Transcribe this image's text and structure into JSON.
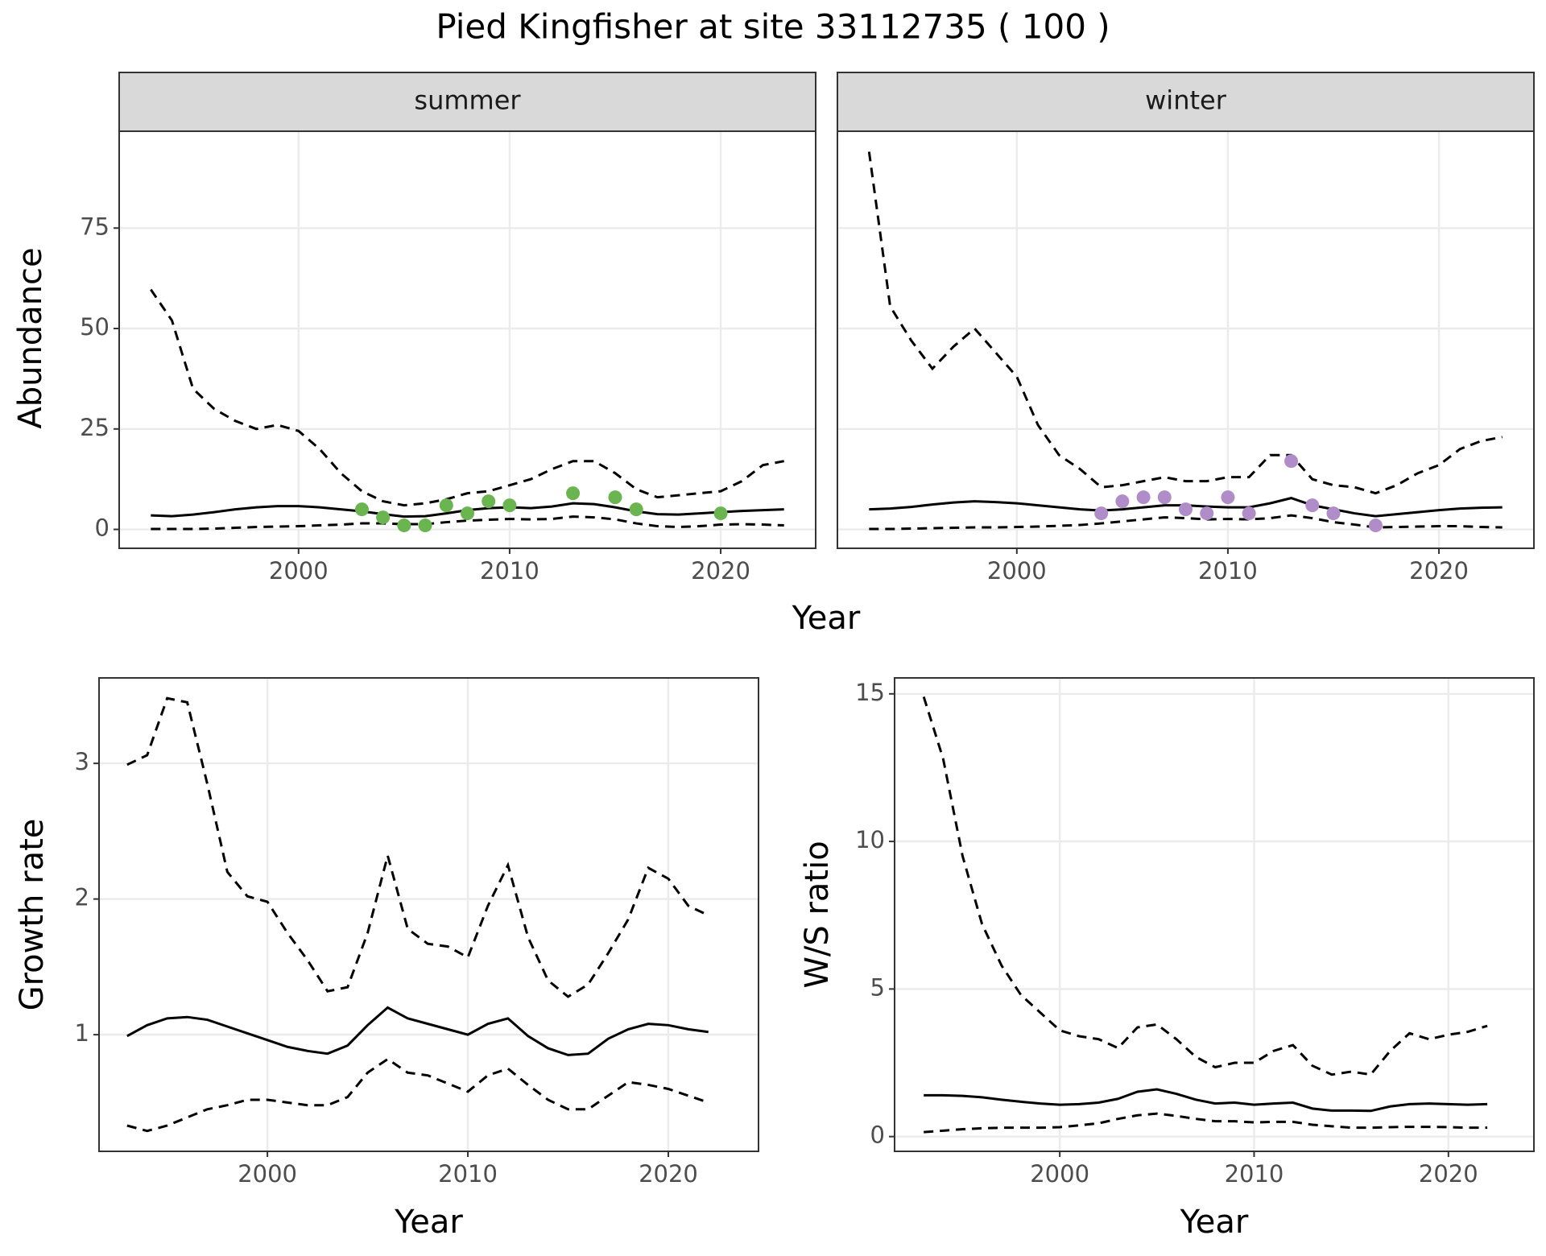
{
  "title": "Pied Kingfisher at site 33112735 ( 100 )",
  "facet_xlabel": "Year",
  "facet_ylabel": "Abundance",
  "chart_data": [
    {
      "type": "line",
      "strip": "summer",
      "x": [
        1993,
        1994,
        1995,
        1996,
        1997,
        1998,
        1999,
        2000,
        2001,
        2002,
        2003,
        2004,
        2005,
        2006,
        2007,
        2008,
        2009,
        2010,
        2011,
        2012,
        2013,
        2014,
        2015,
        2016,
        2017,
        2018,
        2019,
        2020,
        2021,
        2022,
        2023
      ],
      "series": [
        {
          "color": "#000000",
          "dash": "dashed",
          "values": [
            59.7,
            52,
            35,
            30,
            27,
            25,
            26,
            24.5,
            20,
            14,
            9.5,
            7,
            6,
            6.5,
            7.5,
            9,
            9.5,
            11,
            12.5,
            15,
            17,
            17,
            14,
            10,
            8,
            8.5,
            9,
            9.5,
            12,
            16,
            17
          ]
        },
        {
          "color": "#000000",
          "dash": "solid",
          "values": [
            3.5,
            3.3,
            3.7,
            4.3,
            5,
            5.5,
            5.8,
            5.8,
            5.5,
            5,
            4.5,
            3.8,
            3.2,
            3.3,
            4,
            4.8,
            5.3,
            5.5,
            5.3,
            5.7,
            6.5,
            6.3,
            5.5,
            4.5,
            3.8,
            3.7,
            4,
            4.3,
            4.6,
            4.8,
            5
          ]
        },
        {
          "color": "#000000",
          "dash": "dashed",
          "values": [
            0.1,
            0.1,
            0.1,
            0.2,
            0.4,
            0.6,
            0.7,
            0.8,
            1,
            1.2,
            1.5,
            1.5,
            1.3,
            1.3,
            1.8,
            2.2,
            2.4,
            2.6,
            2.5,
            2.6,
            3.2,
            3,
            2.5,
            1.5,
            0.8,
            0.6,
            0.8,
            1.2,
            1.3,
            1.2,
            1
          ]
        }
      ],
      "points": {
        "color": "#6ab550",
        "x": [
          2003,
          2004,
          2005,
          2006,
          2007,
          2008,
          2009,
          2010,
          2013,
          2015,
          2016,
          2020
        ],
        "values": [
          5,
          3,
          1,
          1,
          6,
          4,
          7,
          6,
          9,
          8,
          5,
          4
        ]
      },
      "xlim": [
        1991.5,
        2024.5
      ],
      "xticks": [
        2000,
        2010,
        2020
      ],
      "ylim": [
        -4.7,
        99.1
      ],
      "yticks": [
        0,
        25,
        50,
        75
      ],
      "ytick_labels": true,
      "grid": true
    },
    {
      "type": "line",
      "strip": "winter",
      "x": [
        1993,
        1994,
        1995,
        1996,
        1997,
        1998,
        1999,
        2000,
        2001,
        2002,
        2003,
        2004,
        2005,
        2006,
        2007,
        2008,
        2009,
        2010,
        2011,
        2012,
        2013,
        2014,
        2015,
        2016,
        2017,
        2018,
        2019,
        2020,
        2021,
        2022,
        2023
      ],
      "series": [
        {
          "color": "#000000",
          "dash": "dashed",
          "values": [
            94,
            55.5,
            47,
            40,
            45.5,
            50,
            44,
            38,
            26,
            18.5,
            15,
            10.5,
            11,
            12,
            13,
            12,
            12,
            13,
            13,
            18.5,
            18.5,
            12.5,
            11,
            10.5,
            9,
            11,
            14,
            16,
            20,
            22,
            23
          ]
        },
        {
          "color": "#000000",
          "dash": "solid",
          "values": [
            5,
            5.2,
            5.6,
            6.2,
            6.7,
            7,
            6.8,
            6.5,
            6,
            5.5,
            5,
            4.7,
            5,
            5.5,
            6,
            6,
            5.7,
            5.5,
            5.5,
            6.5,
            7.8,
            6,
            5,
            4,
            3.3,
            3.8,
            4.3,
            4.8,
            5.2,
            5.4,
            5.5
          ]
        },
        {
          "color": "#000000",
          "dash": "dashed",
          "values": [
            0.1,
            0.1,
            0.2,
            0.3,
            0.4,
            0.5,
            0.5,
            0.6,
            0.7,
            0.9,
            1.1,
            1.5,
            2,
            2.5,
            3,
            2.8,
            2.5,
            2.6,
            2.5,
            2.8,
            3.5,
            2.8,
            1.8,
            1.2,
            0.5,
            0.6,
            0.7,
            0.8,
            0.8,
            0.6,
            0.5
          ]
        }
      ],
      "points": {
        "color": "#b08dc8",
        "x": [
          2004,
          2005,
          2006,
          2007,
          2008,
          2009,
          2010,
          2011,
          2013,
          2014,
          2015,
          2017
        ],
        "values": [
          4,
          7,
          8,
          8,
          5,
          4,
          8,
          4,
          17,
          6,
          4,
          1
        ]
      },
      "xlim": [
        1991.5,
        2024.5
      ],
      "xticks": [
        2000,
        2010,
        2020
      ],
      "ylim": [
        -4.7,
        99.1
      ],
      "yticks": [
        0,
        25,
        50,
        75
      ],
      "ytick_labels": false,
      "grid": true
    },
    {
      "type": "line",
      "xlabel": "Year",
      "ylabel": "Growth rate",
      "x": [
        1993,
        1994,
        1995,
        1996,
        1997,
        1998,
        1999,
        2000,
        2001,
        2002,
        2003,
        2004,
        2005,
        2006,
        2007,
        2008,
        2009,
        2010,
        2011,
        2012,
        2013,
        2014,
        2015,
        2016,
        2017,
        2018,
        2019,
        2020,
        2021,
        2022
      ],
      "series": [
        {
          "color": "#000000",
          "dash": "dashed",
          "values": [
            2.99,
            3.06,
            3.48,
            3.45,
            2.85,
            2.2,
            2.02,
            1.98,
            1.75,
            1.55,
            1.32,
            1.35,
            1.75,
            2.32,
            1.78,
            1.67,
            1.65,
            1.57,
            1.95,
            2.25,
            1.72,
            1.4,
            1.28,
            1.37,
            1.6,
            1.85,
            2.23,
            2.15,
            1.95,
            1.88
          ]
        },
        {
          "color": "#000000",
          "dash": "solid",
          "values": [
            0.99,
            1.07,
            1.12,
            1.13,
            1.11,
            1.06,
            1.01,
            0.96,
            0.91,
            0.88,
            0.86,
            0.92,
            1.07,
            1.2,
            1.12,
            1.08,
            1.04,
            1,
            1.08,
            1.12,
            0.99,
            0.9,
            0.85,
            0.86,
            0.97,
            1.04,
            1.08,
            1.07,
            1.04,
            1.02
          ]
        },
        {
          "color": "#000000",
          "dash": "dashed",
          "values": [
            0.33,
            0.29,
            0.33,
            0.39,
            0.45,
            0.48,
            0.52,
            0.52,
            0.5,
            0.48,
            0.48,
            0.54,
            0.72,
            0.82,
            0.72,
            0.7,
            0.64,
            0.58,
            0.7,
            0.75,
            0.63,
            0.52,
            0.45,
            0.45,
            0.55,
            0.65,
            0.63,
            0.6,
            0.55,
            0.5
          ]
        }
      ],
      "xlim": [
        1991.6,
        2024.5
      ],
      "xticks": [
        2000,
        2010,
        2020
      ],
      "ylim": [
        0.14,
        3.63
      ],
      "yticks": [
        1,
        2,
        3
      ],
      "ytick_labels": true,
      "grid": true
    },
    {
      "type": "line",
      "xlabel": "Year",
      "ylabel": "W/S ratio",
      "x": [
        1993,
        1994,
        1995,
        1996,
        1997,
        1998,
        1999,
        2000,
        2001,
        2002,
        2003,
        2004,
        2005,
        2006,
        2007,
        2008,
        2009,
        2010,
        2011,
        2012,
        2013,
        2014,
        2015,
        2016,
        2017,
        2018,
        2019,
        2020,
        2021,
        2022
      ],
      "series": [
        {
          "color": "#000000",
          "dash": "dashed",
          "values": [
            14.9,
            12.8,
            9.5,
            7.2,
            5.8,
            4.8,
            4.2,
            3.6,
            3.4,
            3.3,
            3,
            3.7,
            3.8,
            3.3,
            2.7,
            2.35,
            2.5,
            2.5,
            2.9,
            3.1,
            2.4,
            2.1,
            2.2,
            2.1,
            2.9,
            3.5,
            3.3,
            3.45,
            3.55,
            3.75
          ]
        },
        {
          "color": "#000000",
          "dash": "solid",
          "values": [
            1.4,
            1.4,
            1.38,
            1.33,
            1.25,
            1.18,
            1.12,
            1.08,
            1.1,
            1.15,
            1.28,
            1.52,
            1.6,
            1.45,
            1.25,
            1.12,
            1.15,
            1.08,
            1.12,
            1.15,
            0.95,
            0.88,
            0.88,
            0.87,
            1.02,
            1.1,
            1.12,
            1.1,
            1.08,
            1.1
          ]
        },
        {
          "color": "#000000",
          "dash": "dashed",
          "values": [
            0.15,
            0.2,
            0.25,
            0.28,
            0.3,
            0.3,
            0.3,
            0.32,
            0.38,
            0.45,
            0.6,
            0.72,
            0.78,
            0.7,
            0.6,
            0.52,
            0.52,
            0.48,
            0.5,
            0.5,
            0.4,
            0.35,
            0.3,
            0.3,
            0.32,
            0.33,
            0.33,
            0.32,
            0.3,
            0.3
          ]
        }
      ],
      "xlim": [
        1991.5,
        2024.4
      ],
      "xticks": [
        2000,
        2010,
        2020
      ],
      "ylim": [
        -0.5,
        15.54
      ],
      "yticks": [
        0,
        5,
        10,
        15
      ],
      "ytick_labels": true,
      "grid": true
    }
  ]
}
